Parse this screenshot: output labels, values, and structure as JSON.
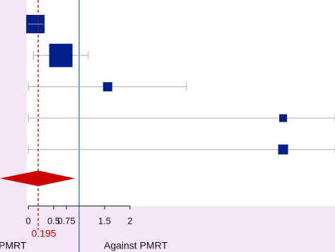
{
  "chart_data": {
    "type": "forest",
    "color": "#00208b",
    "ci_color": "#aaaaaa",
    "pooled_color": "#cc0000",
    "null_line": 1,
    "null_line_color": "#2a5fa0",
    "xlim": [
      -0.556,
      6.03
    ],
    "xticks": [
      0,
      0.5,
      0.75,
      1.5,
      2
    ],
    "studies": [
      {
        "estimate": 0.14,
        "lower": 0,
        "upper": 0.3,
        "weight": 26
      },
      {
        "estimate": 0.64,
        "lower": 0.1,
        "upper": 1.18,
        "weight": 33
      },
      {
        "estimate": 1.56,
        "lower": 0,
        "upper": 3.11,
        "weight": 13
      },
      {
        "estimate": 5.01,
        "lower": 0,
        "upper": 6.03,
        "weight": 11
      },
      {
        "estimate": 5.01,
        "lower": 0,
        "upper": 6.03,
        "weight": 14
      }
    ],
    "pooled": {
      "estimate": 0.195,
      "lower": -0.556,
      "upper": 0.92
    },
    "left_label": "PMRT",
    "right_label": "Against PMRT"
  }
}
